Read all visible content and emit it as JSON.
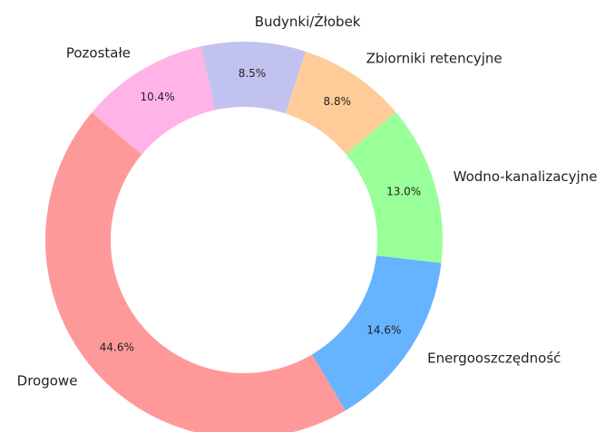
{
  "chart_data": {
    "type": "donut",
    "categories": [
      "Drogowe",
      "Energooszczędność",
      "Wodno-kanalizacyjne",
      "Zbiorniki retencyjne",
      "Budynki/Żłobek",
      "Pozostałe"
    ],
    "values": [
      44.6,
      14.6,
      13.0,
      8.8,
      8.5,
      10.4
    ],
    "value_labels": [
      "44.6%",
      "14.6%",
      "13.0%",
      "8.8%",
      "8.5%",
      "10.4%"
    ],
    "colors": [
      "#ff9999",
      "#66b3ff",
      "#99ff99",
      "#ffcc99",
      "#c2c2f0",
      "#ffb3e6"
    ]
  }
}
